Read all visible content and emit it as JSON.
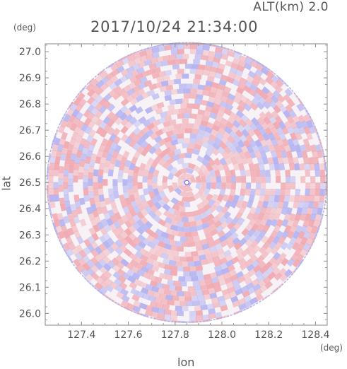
{
  "header": {
    "altitude": "ALT(km) 2.0",
    "timestamp": "2017/10/24 21:34:00"
  },
  "axes": {
    "x_unit": "(deg)",
    "y_unit": "(deg)",
    "x_title": "lon",
    "y_title": "lat"
  },
  "colors": {
    "positive": "#f0a0a8",
    "negative": "#a8a8f0",
    "axis": "#888888",
    "text": "#555555"
  },
  "chart_data": {
    "type": "heatmap",
    "description_kind": "polar radar PPI field (alternating positive/negative values)",
    "xlim": [
      127.245,
      128.45
    ],
    "ylim": [
      25.955,
      27.03
    ],
    "xticks": [
      "127.4",
      "127.6",
      "127.8",
      "128.0",
      "128.2",
      "128.4"
    ],
    "yticks": [
      "26.0",
      "26.1",
      "26.2",
      "26.3",
      "26.4",
      "26.5",
      "26.6",
      "26.7",
      "26.8",
      "26.9",
      "27.0"
    ],
    "center": [
      127.85,
      26.5
    ],
    "range_deg": 0.6,
    "grid": false,
    "legend": "none"
  }
}
